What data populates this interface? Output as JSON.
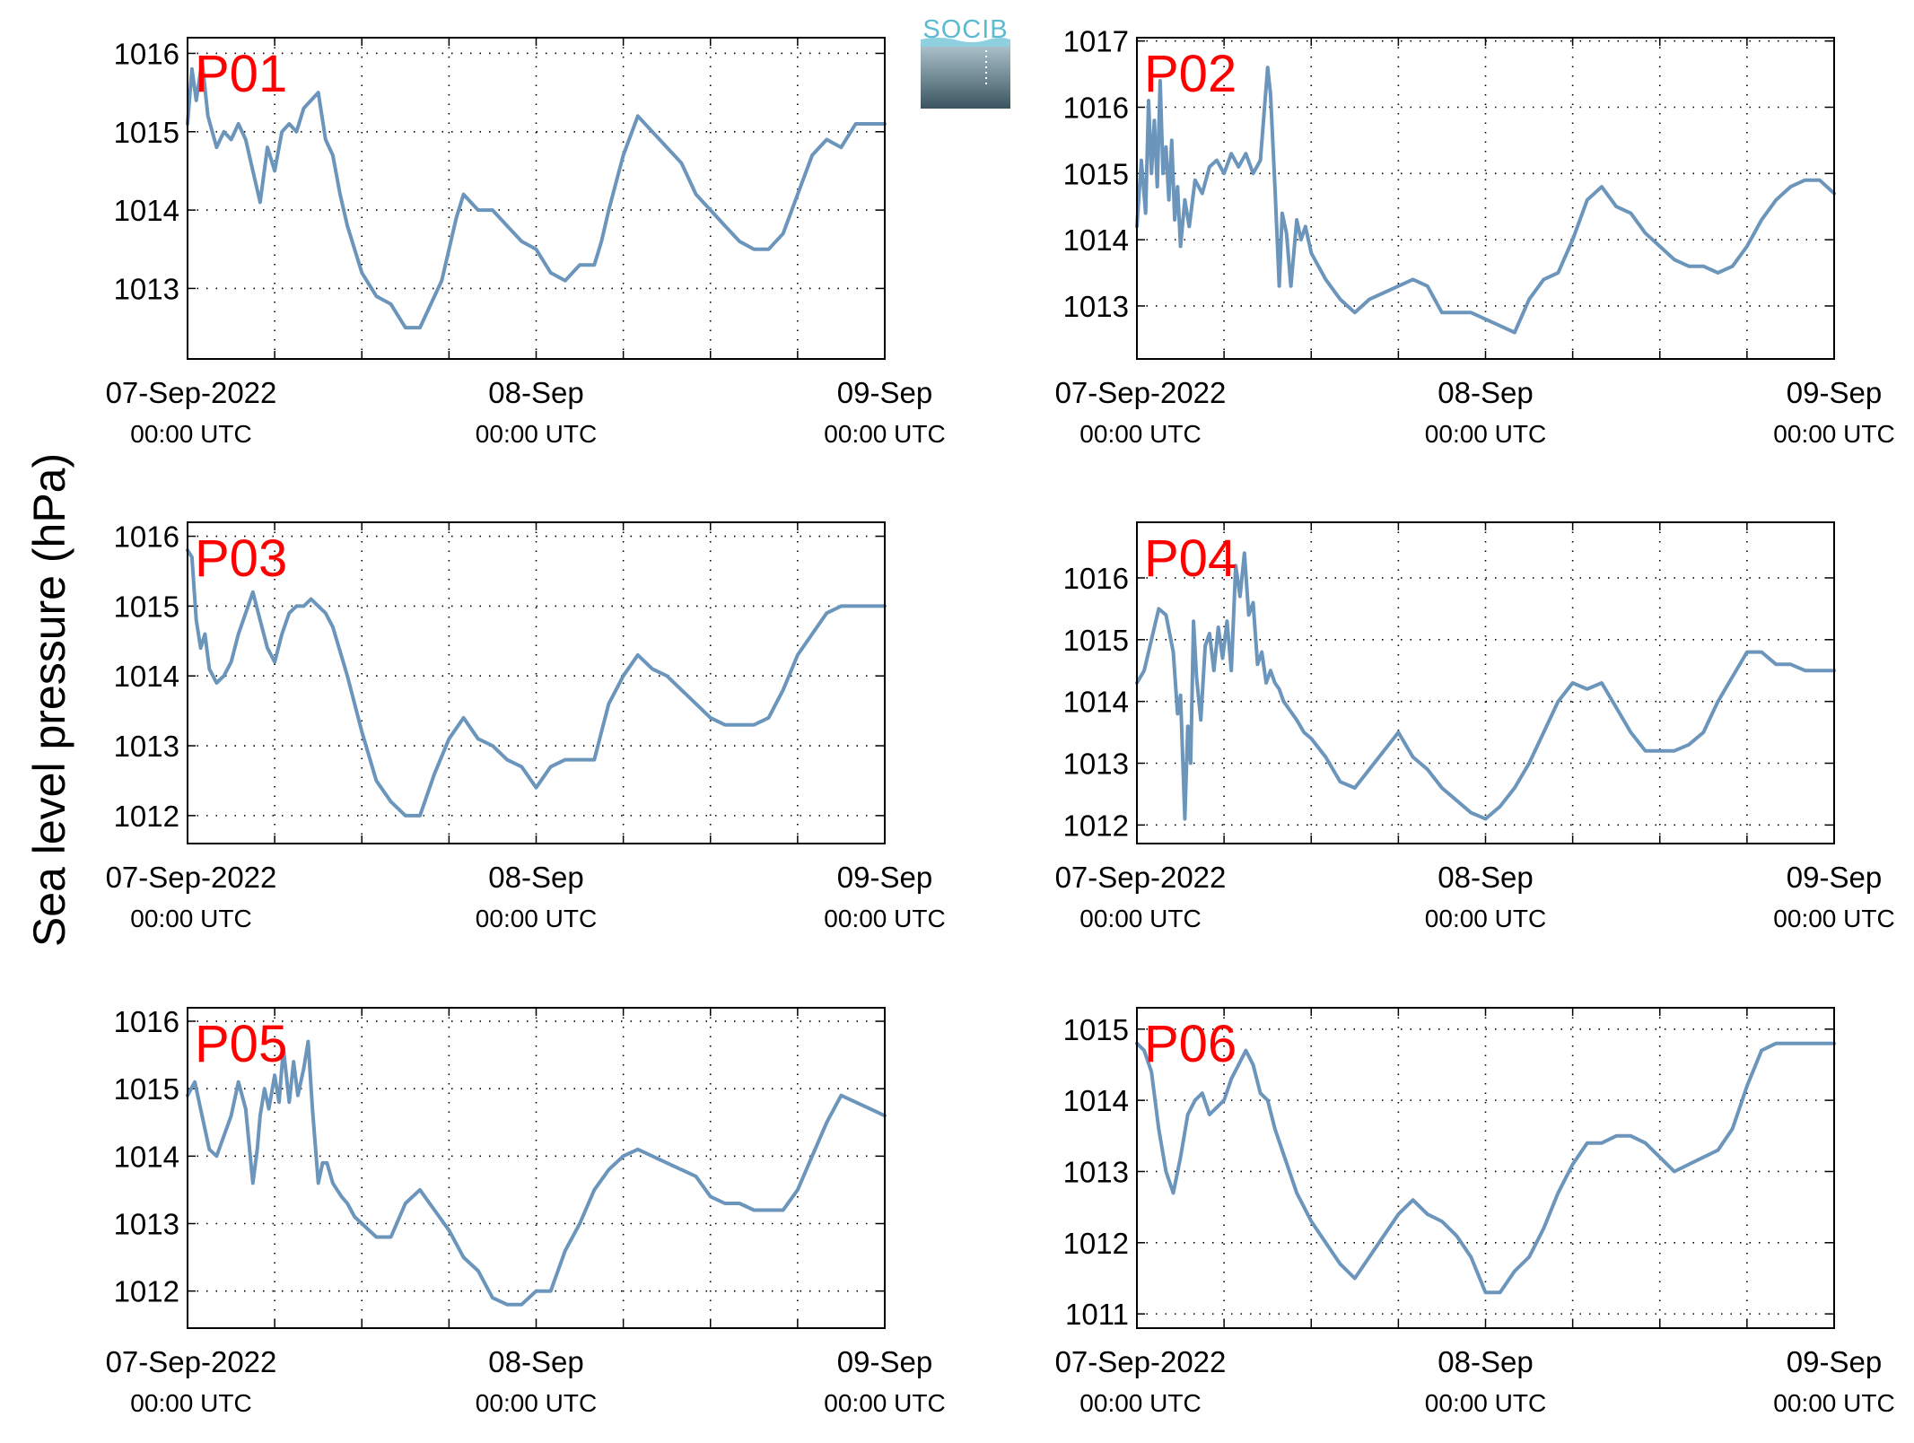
{
  "ylabel": "Sea level pressure (hPa)",
  "logo": {
    "text": "SOCIB"
  },
  "colors": {
    "line": "#6b95bb",
    "panel_label": "#ff0000",
    "grid": "#000000"
  },
  "x_ticks": [
    {
      "value": 0,
      "line1": "07-Sep-2022",
      "line2": "00:00 UTC"
    },
    {
      "value": 24,
      "line1": "08-Sep",
      "line2": "00:00 UTC"
    },
    {
      "value": 48,
      "line1": "09-Sep",
      "line2": "00:00 UTC"
    }
  ],
  "chart_data": [
    {
      "type": "line",
      "title": "P01",
      "x_unit": "hours since 07-Sep-2022 00:00 UTC",
      "xlim": [
        0,
        48
      ],
      "ylim": [
        1012.1,
        1016.2
      ],
      "yticks": [
        1013,
        1014,
        1015,
        1016
      ],
      "grid": true,
      "x": [
        0,
        0.3,
        0.6,
        1,
        1.4,
        2,
        2.5,
        3,
        3.5,
        4,
        4.5,
        5,
        5.5,
        6,
        6.5,
        7,
        7.5,
        8,
        9,
        9.5,
        10,
        10.5,
        11,
        12,
        13,
        14,
        15,
        16,
        17,
        17.5,
        18,
        18.5,
        19,
        20,
        21,
        22,
        23,
        24,
        25,
        26,
        27,
        28,
        28.5,
        29,
        30,
        31,
        32,
        33,
        34,
        35,
        36,
        37,
        38,
        39,
        40,
        41,
        42,
        43,
        44,
        45,
        46,
        47,
        48
      ],
      "y": [
        1015.1,
        1015.8,
        1015.4,
        1015.9,
        1015.2,
        1014.8,
        1015.0,
        1014.9,
        1015.1,
        1014.9,
        1014.5,
        1014.1,
        1014.8,
        1014.5,
        1015.0,
        1015.1,
        1015.0,
        1015.3,
        1015.5,
        1014.9,
        1014.7,
        1014.2,
        1013.8,
        1013.2,
        1012.9,
        1012.8,
        1012.5,
        1012.5,
        1012.9,
        1013.1,
        1013.5,
        1013.9,
        1014.2,
        1014.0,
        1014.0,
        1013.8,
        1013.6,
        1013.5,
        1013.2,
        1013.1,
        1013.3,
        1013.3,
        1013.6,
        1014.0,
        1014.7,
        1015.2,
        1015.0,
        1014.8,
        1014.6,
        1014.2,
        1014.0,
        1013.8,
        1013.6,
        1013.5,
        1013.5,
        1013.7,
        1014.2,
        1014.7,
        1014.9,
        1014.8,
        1015.1,
        1015.1,
        1015.1
      ]
    },
    {
      "type": "line",
      "title": "P02",
      "x_unit": "hours since 07-Sep-2022 00:00 UTC",
      "xlim": [
        0,
        48
      ],
      "ylim": [
        1012.2,
        1017.05
      ],
      "yticks": [
        1013,
        1014,
        1015,
        1016,
        1017
      ],
      "grid": true,
      "x": [
        0,
        0.3,
        0.6,
        0.8,
        1,
        1.2,
        1.4,
        1.6,
        1.8,
        2,
        2.2,
        2.4,
        2.6,
        2.8,
        3,
        3.3,
        3.6,
        4,
        4.5,
        5,
        5.5,
        6,
        6.5,
        7,
        7.5,
        8,
        8.5,
        9,
        9.2,
        9.5,
        9.8,
        10,
        10.3,
        10.6,
        11,
        11.3,
        11.6,
        12,
        12.5,
        13,
        14,
        15,
        16,
        17,
        18,
        19,
        20,
        21,
        22,
        23,
        24,
        25,
        26,
        27,
        28,
        29,
        30,
        31,
        32,
        33,
        34,
        35,
        36,
        37,
        38,
        39,
        40,
        41,
        42,
        43,
        44,
        45,
        46,
        47,
        48
      ],
      "y": [
        1014.2,
        1015.2,
        1014.4,
        1016.1,
        1015.0,
        1015.8,
        1014.8,
        1016.4,
        1015.0,
        1015.4,
        1014.6,
        1015.5,
        1014.3,
        1014.8,
        1013.9,
        1014.6,
        1014.2,
        1014.9,
        1014.7,
        1015.1,
        1015.2,
        1015.0,
        1015.3,
        1015.1,
        1015.3,
        1015.0,
        1015.2,
        1016.6,
        1016.2,
        1014.8,
        1013.3,
        1014.4,
        1014.1,
        1013.3,
        1014.3,
        1014.0,
        1014.2,
        1013.8,
        1013.6,
        1013.4,
        1013.1,
        1012.9,
        1013.1,
        1013.2,
        1013.3,
        1013.4,
        1013.3,
        1012.9,
        1012.9,
        1012.9,
        1012.8,
        1012.7,
        1012.6,
        1013.1,
        1013.4,
        1013.5,
        1014.0,
        1014.6,
        1014.8,
        1014.5,
        1014.4,
        1014.1,
        1013.9,
        1013.7,
        1013.6,
        1013.6,
        1013.5,
        1013.6,
        1013.9,
        1014.3,
        1014.6,
        1014.8,
        1014.9,
        1014.9,
        1014.7
      ]
    },
    {
      "type": "line",
      "title": "P03",
      "x_unit": "hours since 07-Sep-2022 00:00 UTC",
      "xlim": [
        0,
        48
      ],
      "ylim": [
        1011.6,
        1016.2
      ],
      "yticks": [
        1012,
        1013,
        1014,
        1015,
        1016
      ],
      "grid": true,
      "x": [
        0,
        0.3,
        0.6,
        0.9,
        1.2,
        1.5,
        2,
        2.5,
        3,
        3.5,
        4,
        4.5,
        5,
        5.5,
        6,
        6.5,
        7,
        7.5,
        8,
        8.5,
        9,
        9.5,
        10,
        11,
        12,
        13,
        14,
        15,
        16,
        17,
        18,
        19,
        20,
        21,
        22,
        23,
        24,
        25,
        26,
        27,
        28,
        28.5,
        29,
        30,
        31,
        32,
        33,
        34,
        35,
        36,
        37,
        38,
        39,
        40,
        41,
        42,
        43,
        44,
        45,
        46,
        47,
        48
      ],
      "y": [
        1015.8,
        1015.7,
        1014.8,
        1014.4,
        1014.6,
        1014.1,
        1013.9,
        1014.0,
        1014.2,
        1014.6,
        1014.9,
        1015.2,
        1014.8,
        1014.4,
        1014.2,
        1014.6,
        1014.9,
        1015.0,
        1015.0,
        1015.1,
        1015.0,
        1014.9,
        1014.7,
        1014.0,
        1013.2,
        1012.5,
        1012.2,
        1012.0,
        1012.0,
        1012.6,
        1013.1,
        1013.4,
        1013.1,
        1013.0,
        1012.8,
        1012.7,
        1012.4,
        1012.7,
        1012.8,
        1012.8,
        1012.8,
        1013.2,
        1013.6,
        1014.0,
        1014.3,
        1014.1,
        1014.0,
        1013.8,
        1013.6,
        1013.4,
        1013.3,
        1013.3,
        1013.3,
        1013.4,
        1013.8,
        1014.3,
        1014.6,
        1014.9,
        1015.0,
        1015.0,
        1015.0,
        1015.0
      ]
    },
    {
      "type": "line",
      "title": "P04",
      "x_unit": "hours since 07-Sep-2022 00:00 UTC",
      "xlim": [
        0,
        48
      ],
      "ylim": [
        1011.7,
        1016.9
      ],
      "yticks": [
        1012,
        1013,
        1014,
        1015,
        1016
      ],
      "grid": true,
      "x": [
        0,
        0.5,
        1,
        1.5,
        2,
        2.5,
        2.8,
        3,
        3.3,
        3.5,
        3.7,
        3.9,
        4.1,
        4.4,
        4.7,
        5,
        5.3,
        5.6,
        5.9,
        6.2,
        6.5,
        6.8,
        7.1,
        7.4,
        7.7,
        8,
        8.3,
        8.6,
        8.9,
        9.2,
        9.5,
        9.8,
        10.1,
        10.4,
        10.7,
        11,
        11.5,
        12,
        13,
        14,
        15,
        16,
        17,
        18,
        19,
        20,
        21,
        22,
        23,
        24,
        25,
        26,
        27,
        28,
        29,
        30,
        31,
        32,
        33,
        34,
        35,
        36,
        37,
        38,
        39,
        40,
        41,
        42,
        43,
        44,
        45,
        46,
        47,
        48
      ],
      "y": [
        1014.3,
        1014.5,
        1015.0,
        1015.5,
        1015.4,
        1014.8,
        1013.8,
        1014.1,
        1012.1,
        1013.6,
        1013.0,
        1015.3,
        1014.4,
        1013.7,
        1014.9,
        1015.1,
        1014.5,
        1015.2,
        1014.7,
        1015.3,
        1014.5,
        1016.2,
        1015.7,
        1016.4,
        1015.4,
        1015.6,
        1014.6,
        1014.8,
        1014.3,
        1014.5,
        1014.3,
        1014.2,
        1014.0,
        1013.9,
        1013.8,
        1013.7,
        1013.5,
        1013.4,
        1013.1,
        1012.7,
        1012.6,
        1012.9,
        1013.2,
        1013.5,
        1013.1,
        1012.9,
        1012.6,
        1012.4,
        1012.2,
        1012.1,
        1012.3,
        1012.6,
        1013.0,
        1013.5,
        1014.0,
        1014.3,
        1014.2,
        1014.3,
        1013.9,
        1013.5,
        1013.2,
        1013.2,
        1013.2,
        1013.3,
        1013.5,
        1014.0,
        1014.4,
        1014.8,
        1014.8,
        1014.6,
        1014.6,
        1014.5,
        1014.5,
        1014.5
      ]
    },
    {
      "type": "line",
      "title": "P05",
      "x_unit": "hours since 07-Sep-2022 00:00 UTC",
      "xlim": [
        0,
        48
      ],
      "ylim": [
        1011.45,
        1016.2
      ],
      "yticks": [
        1012,
        1013,
        1014,
        1015,
        1016
      ],
      "grid": true,
      "x": [
        0,
        0.5,
        1,
        1.5,
        2,
        2.5,
        3,
        3.5,
        4,
        4.5,
        4.8,
        5,
        5.3,
        5.6,
        6,
        6.3,
        6.6,
        7,
        7.3,
        7.6,
        8,
        8.3,
        8.6,
        9,
        9.3,
        9.6,
        10,
        10.3,
        10.6,
        11,
        11.5,
        12,
        12.5,
        13,
        14,
        15,
        16,
        17,
        18,
        19,
        20,
        21,
        22,
        23,
        24,
        25,
        26,
        27,
        28,
        29,
        30,
        31,
        32,
        33,
        34,
        35,
        36,
        37,
        38,
        39,
        40,
        41,
        42,
        43,
        44,
        45,
        46,
        47,
        48
      ],
      "y": [
        1014.9,
        1015.1,
        1014.6,
        1014.1,
        1014.0,
        1014.3,
        1014.6,
        1015.1,
        1014.7,
        1013.6,
        1014.1,
        1014.6,
        1015.0,
        1014.7,
        1015.2,
        1014.8,
        1015.6,
        1014.8,
        1015.4,
        1014.9,
        1015.3,
        1015.7,
        1014.7,
        1013.6,
        1013.9,
        1013.9,
        1013.6,
        1013.5,
        1013.4,
        1013.3,
        1013.1,
        1013.0,
        1012.9,
        1012.8,
        1012.8,
        1013.3,
        1013.5,
        1013.2,
        1012.9,
        1012.5,
        1012.3,
        1011.9,
        1011.8,
        1011.8,
        1012.0,
        1012.0,
        1012.6,
        1013.0,
        1013.5,
        1013.8,
        1014.0,
        1014.1,
        1014.0,
        1013.9,
        1013.8,
        1013.7,
        1013.4,
        1013.3,
        1013.3,
        1013.2,
        1013.2,
        1013.2,
        1013.5,
        1014.0,
        1014.5,
        1014.9,
        1014.8,
        1014.7,
        1014.6
      ]
    },
    {
      "type": "line",
      "title": "P06",
      "x_unit": "hours since 07-Sep-2022 00:00 UTC",
      "xlim": [
        0,
        48
      ],
      "ylim": [
        1010.8,
        1015.3
      ],
      "yticks": [
        1011,
        1012,
        1013,
        1014,
        1015
      ],
      "grid": true,
      "x": [
        0,
        0.5,
        1,
        1.5,
        2,
        2.5,
        3,
        3.5,
        4,
        4.5,
        5,
        5.5,
        6,
        6.5,
        7,
        7.5,
        8,
        8.5,
        9,
        9.5,
        10,
        10.5,
        11,
        11.5,
        12,
        13,
        14,
        15,
        16,
        17,
        18,
        19,
        20,
        21,
        22,
        23,
        24,
        25,
        26,
        27,
        28,
        29,
        30,
        31,
        32,
        33,
        34,
        35,
        36,
        37,
        38,
        39,
        40,
        41,
        42,
        43,
        44,
        45,
        46,
        47,
        48
      ],
      "y": [
        1014.8,
        1014.7,
        1014.4,
        1013.6,
        1013.0,
        1012.7,
        1013.2,
        1013.8,
        1014.0,
        1014.1,
        1013.8,
        1013.9,
        1014.0,
        1014.3,
        1014.5,
        1014.7,
        1014.5,
        1014.1,
        1014.0,
        1013.6,
        1013.3,
        1013.0,
        1012.7,
        1012.5,
        1012.3,
        1012.0,
        1011.7,
        1011.5,
        1011.8,
        1012.1,
        1012.4,
        1012.6,
        1012.4,
        1012.3,
        1012.1,
        1011.8,
        1011.3,
        1011.3,
        1011.6,
        1011.8,
        1012.2,
        1012.7,
        1013.1,
        1013.4,
        1013.4,
        1013.5,
        1013.5,
        1013.4,
        1013.2,
        1013.0,
        1013.1,
        1013.2,
        1013.3,
        1013.6,
        1014.2,
        1014.7,
        1014.8,
        1014.8,
        1014.8,
        1014.8,
        1014.8
      ]
    }
  ]
}
